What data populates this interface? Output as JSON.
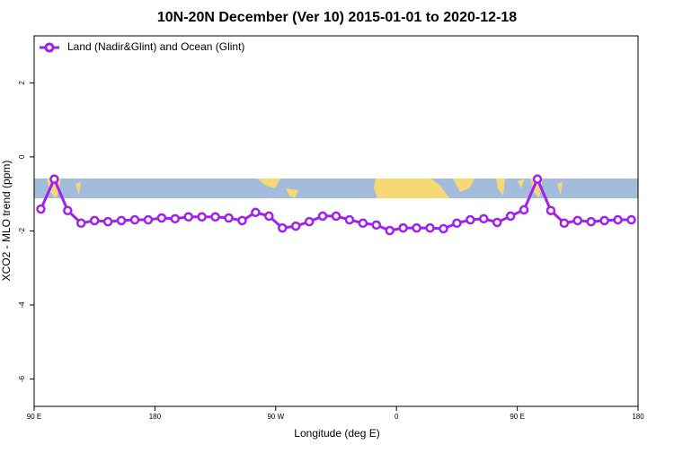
{
  "chart_data": {
    "type": "line",
    "title": "10N-20N December (Ver 10)   2015-01-01 to 2020-12-18",
    "x_label": "Longitude (deg E)",
    "y_label": "XCO2 - MLO trend (ppm)",
    "x": [
      95,
      105,
      115,
      125,
      135,
      145,
      155,
      165,
      175,
      185,
      195,
      205,
      215,
      225,
      235,
      245,
      255,
      265,
      275,
      285,
      295,
      305,
      315,
      325,
      335,
      345,
      355,
      365,
      375,
      385,
      395,
      405,
      415,
      425,
      435,
      445,
      455,
      465,
      475,
      485,
      495,
      505,
      515,
      525,
      535
    ],
    "series": [
      {
        "name": "Land (Nadir&Glint) and Ocean (Glint)",
        "color": "#a020f0",
        "values": [
          -1.41,
          -0.6,
          -1.45,
          -1.79,
          -1.72,
          -1.75,
          -1.72,
          -1.7,
          -1.7,
          -1.65,
          -1.67,
          -1.62,
          -1.62,
          -1.62,
          -1.65,
          -1.72,
          -1.5,
          -1.6,
          -1.92,
          -1.87,
          -1.75,
          -1.6,
          -1.6,
          -1.7,
          -1.79,
          -1.84,
          -1.99,
          -1.92,
          -1.92,
          -1.92,
          -1.94,
          -1.79,
          -1.7,
          -1.67,
          -1.77,
          -1.6,
          -1.43,
          -0.6,
          -1.45,
          -1.79,
          -1.72,
          -1.75,
          -1.72,
          -1.7,
          -1.7
        ]
      }
    ],
    "xlim": [
      90,
      540
    ],
    "xticks": [
      {
        "value": 90,
        "label": "90 E"
      },
      180,
      {
        "value": 270,
        "label": "90 W"
      },
      {
        "value": 360,
        "label": "0"
      },
      {
        "value": 450,
        "label": "90 E"
      },
      {
        "value": 540,
        "label": "180"
      }
    ],
    "ylim": [
      -6.74,
      3.27
    ],
    "yticks": [
      -6,
      -4,
      -2,
      0,
      2
    ],
    "legend": "top-left"
  }
}
